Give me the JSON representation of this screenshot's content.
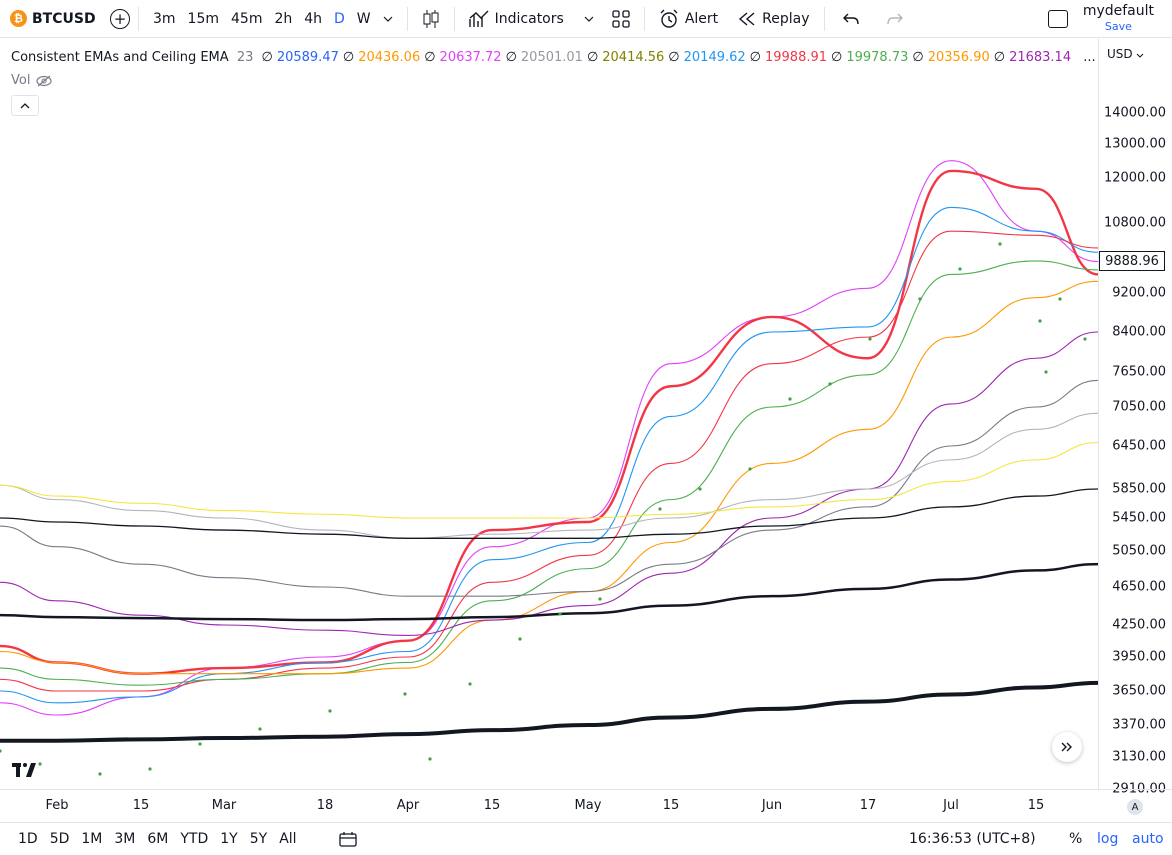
{
  "header": {
    "symbol": "BTCUSD",
    "coin_glyph": "₿",
    "intervals": [
      "3m",
      "15m",
      "45m",
      "2h",
      "4h",
      "D",
      "W"
    ],
    "active_interval": "D",
    "indicators_label": "Indicators",
    "alert_label": "Alert",
    "replay_label": "Replay",
    "layout_name": "mydefault",
    "save_label": "Save"
  },
  "legend": {
    "title": "Consistent EMAs and Ceiling EMA",
    "length": "23",
    "null_glyph": "∅",
    "values": [
      {
        "v": "20589.47",
        "color": "#2962ff"
      },
      {
        "v": "20436.06",
        "color": "#ff9800"
      },
      {
        "v": "20637.72",
        "color": "#e040fb"
      },
      {
        "v": "20501.01",
        "color": "#9598a1"
      },
      {
        "v": "20414.56",
        "color": "#808000"
      },
      {
        "v": "20149.62",
        "color": "#2196f3"
      },
      {
        "v": "19988.91",
        "color": "#f23645"
      },
      {
        "v": "19978.73",
        "color": "#4caf50"
      },
      {
        "v": "20356.90",
        "color": "#ff9800"
      },
      {
        "v": "21683.14",
        "color": "#9c27b0"
      }
    ],
    "ellipsis": "...",
    "vol_label": "Vol"
  },
  "price_axis": {
    "currency": "USD",
    "ticks": [
      "14000.00",
      "13000.00",
      "12000.00",
      "10800.00",
      "9200.00",
      "8400.00",
      "7650.00",
      "7050.00",
      "6450.00",
      "5850.00",
      "5450.00",
      "5050.00",
      "4650.00",
      "4250.00",
      "3950.00",
      "3650.00",
      "3370.00",
      "3130.00",
      "2910.00"
    ],
    "current_price": "9888.96"
  },
  "time_axis": {
    "labels": [
      "Feb",
      "15",
      "Mar",
      "18",
      "Apr",
      "15",
      "May",
      "15",
      "Jun",
      "17",
      "Jul",
      "15"
    ],
    "scale_btn": "A"
  },
  "bottom": {
    "ranges": [
      "1D",
      "5D",
      "1M",
      "3M",
      "6M",
      "YTD",
      "1Y",
      "5Y",
      "All"
    ],
    "clock": "16:36:53 (UTC+8)",
    "percent": "%",
    "log": "log",
    "auto": "auto"
  },
  "chart_data": {
    "type": "line",
    "title": "",
    "xlabel": "",
    "ylabel": "",
    "ylim": [
      2850,
      14500
    ],
    "log_scale": true,
    "grid": false,
    "x": [
      "Jan 22",
      "Feb 1",
      "Feb 15",
      "Mar 1",
      "Mar 18",
      "Apr 1",
      "Apr 15",
      "May 1",
      "May 15",
      "Jun 1",
      "Jun 17",
      "Jul 1",
      "Jul 15",
      "Jul 24"
    ],
    "series": [
      {
        "color": "#e040fb",
        "values": [
          3550,
          3450,
          3600,
          3850,
          3950,
          4100,
          5100,
          5450,
          7800,
          8700,
          9300,
          12500,
          10600,
          9888
        ]
      },
      {
        "color": "#f23645",
        "values": [
          4050,
          3900,
          3800,
          3850,
          3900,
          4100,
          5300,
          5400,
          7400,
          8700,
          7900,
          12200,
          11700,
          9600
        ]
      },
      {
        "color": "#2196f3",
        "values": [
          3650,
          3550,
          3600,
          3800,
          3900,
          4000,
          4950,
          5150,
          6900,
          8400,
          8500,
          11200,
          10600,
          10100
        ]
      },
      {
        "color": "#f23645",
        "values": [
          3750,
          3650,
          3650,
          3750,
          3850,
          3950,
          4700,
          5000,
          6200,
          7800,
          8300,
          10600,
          10500,
          10200
        ]
      },
      {
        "color": "#4caf50",
        "values": [
          3850,
          3750,
          3700,
          3750,
          3800,
          3900,
          4500,
          4850,
          5700,
          7050,
          7600,
          9600,
          9900,
          9700
        ]
      },
      {
        "color": "#ff9800",
        "values": [
          4000,
          3900,
          3800,
          3800,
          3800,
          3850,
          4300,
          4600,
          5150,
          6200,
          6700,
          8300,
          9100,
          9450
        ]
      },
      {
        "color": "#9c27b0",
        "values": [
          4700,
          4500,
          4350,
          4250,
          4200,
          4150,
          4300,
          4450,
          4800,
          5450,
          5850,
          7100,
          7900,
          8400
        ]
      },
      {
        "color": "#787b86",
        "values": [
          5350,
          5100,
          4900,
          4750,
          4650,
          4550,
          4550,
          4600,
          4900,
          5300,
          5600,
          6450,
          7050,
          7500
        ]
      },
      {
        "color": "#b2b5be",
        "values": [
          5900,
          5700,
          5550,
          5450,
          5300,
          5200,
          5250,
          5300,
          5450,
          5700,
          5850,
          6250,
          6700,
          6950
        ]
      },
      {
        "color": "#f5e642",
        "values": [
          5900,
          5750,
          5650,
          5550,
          5500,
          5450,
          5450,
          5450,
          5500,
          5600,
          5700,
          5950,
          6250,
          6500
        ]
      },
      {
        "color": "#131722",
        "values": [
          5450,
          5400,
          5350,
          5300,
          5250,
          5200,
          5200,
          5200,
          5250,
          5350,
          5450,
          5600,
          5750,
          5850
        ]
      },
      {
        "color": "#131722",
        "values": [
          4350,
          4330,
          4320,
          4310,
          4300,
          4310,
          4330,
          4370,
          4450,
          4550,
          4630,
          4730,
          4830,
          4900
        ]
      },
      {
        "color": "#131722",
        "values": [
          3250,
          3250,
          3260,
          3270,
          3280,
          3300,
          3330,
          3370,
          3430,
          3500,
          3560,
          3620,
          3680,
          3720
        ]
      }
    ]
  }
}
